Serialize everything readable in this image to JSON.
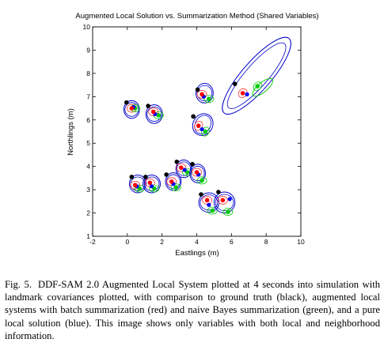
{
  "chart_data": {
    "type": "scatter",
    "title": "Augmented Local Solution vs. Summarization Method (Shared Variables)",
    "xlabel": "Eastlings (m)",
    "ylabel": "Northlings (m)",
    "xlim": [
      -2,
      10
    ],
    "ylim": [
      1,
      10
    ],
    "x_ticks": [
      -2,
      0,
      2,
      4,
      6,
      8,
      10
    ],
    "y_ticks": [
      1,
      2,
      3,
      4,
      5,
      6,
      7,
      8,
      9,
      10
    ],
    "grid": false,
    "legend": "none",
    "colors": {
      "ground_truth": "#000000",
      "batch_summarization": "#ff0000",
      "naive_bayes_summarization": "#00cc00",
      "local_solution": "#0000ff",
      "covariance_ellipse": "#0000cc",
      "covariance_ellipse_batch": "#ff3333",
      "covariance_ellipse_naive": "#00cc00"
    },
    "landmarks": [
      {
        "truth": [
          -0.05,
          6.75
        ],
        "red": [
          0.25,
          6.5
        ],
        "green": [
          0.45,
          6.5
        ],
        "blue": [
          0.35,
          6.55
        ],
        "ellipse": {
          "center": [
            0.25,
            6.45
          ],
          "rx": 0.45,
          "ry": 0.38,
          "angle": 0
        }
      },
      {
        "truth": [
          1.2,
          6.6
        ],
        "red": [
          1.5,
          6.35
        ],
        "green": [
          1.8,
          6.2
        ],
        "blue": [
          1.6,
          6.25
        ],
        "ellipse": {
          "center": [
            1.55,
            6.25
          ],
          "rx": 0.48,
          "ry": 0.4,
          "angle": 0
        }
      },
      {
        "truth": [
          4.05,
          7.3
        ],
        "red": [
          4.3,
          7.1
        ],
        "green": [
          4.7,
          6.9
        ],
        "blue": [
          4.4,
          7.0
        ],
        "ellipse": {
          "center": [
            4.45,
            7.15
          ],
          "rx": 0.5,
          "ry": 0.42,
          "angle": 0
        }
      },
      {
        "truth": [
          6.2,
          7.55
        ],
        "red": [
          6.65,
          7.15
        ],
        "green": [
          7.5,
          7.45
        ],
        "blue": [
          6.9,
          7.1
        ],
        "ellipse": {
          "center": [
            7.45,
            7.9
          ],
          "rx": 2.85,
          "ry": 0.62,
          "angle": 49
        }
      },
      {
        "truth": [
          3.8,
          6.15
        ],
        "red": [
          4.1,
          5.75
        ],
        "green": [
          4.5,
          5.5
        ],
        "blue": [
          4.3,
          5.6
        ],
        "ellipse": {
          "center": [
            4.35,
            5.8
          ],
          "rx": 0.65,
          "ry": 0.42,
          "angle": 60
        }
      },
      {
        "truth": [
          0.25,
          3.55
        ],
        "red": [
          0.45,
          3.2
        ],
        "green": [
          0.7,
          3.05
        ],
        "blue": [
          0.55,
          3.15
        ],
        "ellipse": {
          "center": [
            0.6,
            3.25
          ],
          "rx": 0.48,
          "ry": 0.38,
          "angle": 0
        }
      },
      {
        "truth": [
          1.05,
          3.55
        ],
        "red": [
          1.3,
          3.3
        ],
        "green": [
          1.55,
          3.05
        ],
        "blue": [
          1.4,
          3.15
        ],
        "ellipse": {
          "center": [
            1.4,
            3.25
          ],
          "rx": 0.5,
          "ry": 0.38,
          "angle": 0
        }
      },
      {
        "truth": [
          2.25,
          3.65
        ],
        "red": [
          2.55,
          3.35
        ],
        "green": [
          2.8,
          3.1
        ],
        "blue": [
          2.65,
          3.25
        ],
        "ellipse": {
          "center": [
            2.65,
            3.35
          ],
          "rx": 0.45,
          "ry": 0.38,
          "angle": 0
        }
      },
      {
        "truth": [
          2.85,
          4.2
        ],
        "red": [
          3.1,
          3.95
        ],
        "green": [
          3.45,
          3.75
        ],
        "blue": [
          3.3,
          3.85
        ],
        "ellipse": {
          "center": [
            3.25,
            3.9
          ],
          "rx": 0.45,
          "ry": 0.38,
          "angle": 0
        }
      },
      {
        "truth": [
          3.75,
          4.1
        ],
        "red": [
          4.0,
          3.75
        ],
        "green": [
          4.3,
          3.4
        ],
        "blue": [
          4.1,
          3.65
        ],
        "ellipse": {
          "center": [
            4.05,
            3.7
          ],
          "rx": 0.45,
          "ry": 0.4,
          "angle": 0
        }
      },
      {
        "truth": [
          4.25,
          2.8
        ],
        "red": [
          4.6,
          2.55
        ],
        "green": [
          4.9,
          2.1
        ],
        "blue": [
          4.7,
          2.35
        ],
        "ellipse": {
          "center": [
            4.7,
            2.45
          ],
          "rx": 0.58,
          "ry": 0.42,
          "angle": 0
        }
      },
      {
        "truth": [
          5.25,
          2.9
        ],
        "red": [
          5.5,
          2.55
        ],
        "green": [
          5.8,
          2.05
        ],
        "blue": [
          5.9,
          2.6
        ],
        "ellipse": {
          "center": [
            5.6,
            2.45
          ],
          "rx": 0.6,
          "ry": 0.45,
          "angle": 0
        }
      }
    ]
  },
  "caption": {
    "label": "Fig. 5.",
    "text": "DDF-SAM 2.0 Augmented Local System plotted at 4 seconds into simulation with landmark covariances plotted, with comparison to ground truth (black), augmented local systems with batch summarization (red) and naive Bayes summarization (green), and a pure local solution (blue). This image shows only variables with both local and neighborhood information."
  }
}
